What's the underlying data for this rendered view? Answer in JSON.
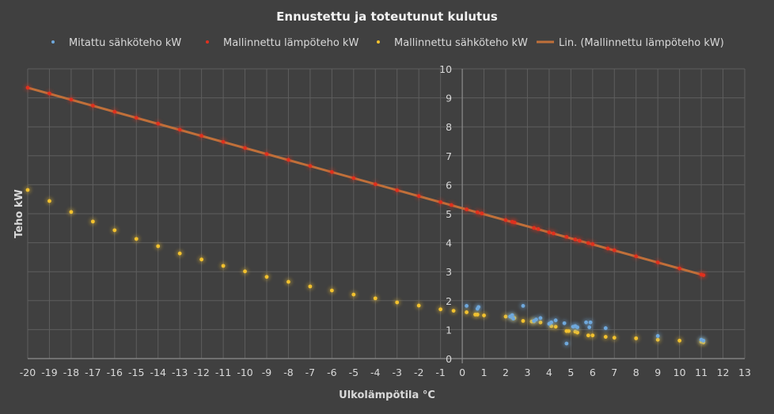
{
  "chart_data": {
    "type": "scatter",
    "title": "Ennustettu ja toteutunut kulutus",
    "xlabel": "Ulkolämpötila °C",
    "ylabel": "Teho kW",
    "xlim": [
      -20,
      13
    ],
    "ylim": [
      0,
      10
    ],
    "grid": true,
    "legend_position": "top",
    "x_ticks": [
      "-20",
      "-19",
      "-18",
      "-17",
      "-16",
      "-15",
      "-14",
      "-13",
      "-12",
      "-11",
      "-10",
      "-9",
      "-8",
      "-7",
      "-6",
      "-5",
      "-4",
      "-3",
      "-2",
      "-1",
      "0",
      "1",
      "2",
      "3",
      "4",
      "5",
      "6",
      "7",
      "8",
      "9",
      "10",
      "11",
      "12",
      "13"
    ],
    "y_ticks": [
      "0",
      "1",
      "2",
      "3",
      "4",
      "5",
      "6",
      "7",
      "8",
      "9",
      "10"
    ],
    "series": [
      {
        "name": "Mitattu sähköteho kW",
        "color": "#6fa8dc",
        "points": [
          [
            0.2,
            1.82
          ],
          [
            0.7,
            1.72
          ],
          [
            0.75,
            1.78
          ],
          [
            2.2,
            1.45
          ],
          [
            2.3,
            1.5
          ],
          [
            2.35,
            1.38
          ],
          [
            2.8,
            1.82
          ],
          [
            3.3,
            1.3
          ],
          [
            3.4,
            1.35
          ],
          [
            3.6,
            1.4
          ],
          [
            4.0,
            1.2
          ],
          [
            4.1,
            1.25
          ],
          [
            4.3,
            1.32
          ],
          [
            4.7,
            1.22
          ],
          [
            4.8,
            0.52
          ],
          [
            5.1,
            1.1
          ],
          [
            5.2,
            1.12
          ],
          [
            5.3,
            1.08
          ],
          [
            5.7,
            1.25
          ],
          [
            5.9,
            1.25
          ],
          [
            5.85,
            1.08
          ],
          [
            6.6,
            1.05
          ],
          [
            9.0,
            0.78
          ],
          [
            11.0,
            0.65
          ],
          [
            11.1,
            0.62
          ]
        ]
      },
      {
        "name": "Mallinnettu lämpöteho kW",
        "color": "#e0301e",
        "points": [
          [
            -20,
            9.35
          ],
          [
            -19,
            9.15
          ],
          [
            -18,
            8.94
          ],
          [
            -17,
            8.73
          ],
          [
            -16,
            8.52
          ],
          [
            -15,
            8.31
          ],
          [
            -14,
            8.11
          ],
          [
            -13,
            7.9
          ],
          [
            -12,
            7.69
          ],
          [
            -11,
            7.48
          ],
          [
            -10,
            7.27
          ],
          [
            -9,
            7.06
          ],
          [
            -8,
            6.86
          ],
          [
            -7,
            6.65
          ],
          [
            -6,
            6.44
          ],
          [
            -5,
            6.23
          ],
          [
            -4,
            6.02
          ],
          [
            -3,
            5.81
          ],
          [
            -2,
            5.61
          ],
          [
            -1,
            5.4
          ],
          [
            -0.5,
            5.3
          ],
          [
            0.2,
            5.15
          ],
          [
            0.7,
            5.05
          ],
          [
            0.9,
            5.01
          ],
          [
            2.0,
            4.78
          ],
          [
            2.3,
            4.72
          ],
          [
            2.4,
            4.7
          ],
          [
            3.3,
            4.51
          ],
          [
            3.5,
            4.47
          ],
          [
            4.0,
            4.36
          ],
          [
            4.2,
            4.32
          ],
          [
            4.8,
            4.2
          ],
          [
            5.2,
            4.11
          ],
          [
            5.4,
            4.07
          ],
          [
            5.8,
            3.99
          ],
          [
            6.0,
            3.95
          ],
          [
            6.7,
            3.8
          ],
          [
            7.0,
            3.74
          ],
          [
            8.0,
            3.53
          ],
          [
            9.0,
            3.32
          ],
          [
            10.0,
            3.11
          ],
          [
            11.0,
            2.9
          ],
          [
            11.1,
            2.88
          ]
        ]
      },
      {
        "name": "Mallinnettu sähköteho kW",
        "color": "#f2c12e",
        "points": [
          [
            -20,
            5.82
          ],
          [
            -19,
            5.44
          ],
          [
            -18,
            5.06
          ],
          [
            -17,
            4.73
          ],
          [
            -16,
            4.43
          ],
          [
            -15,
            4.13
          ],
          [
            -14,
            3.88
          ],
          [
            -13,
            3.63
          ],
          [
            -12,
            3.42
          ],
          [
            -11,
            3.2
          ],
          [
            -10,
            3.01
          ],
          [
            -9,
            2.82
          ],
          [
            -8,
            2.65
          ],
          [
            -7,
            2.49
          ],
          [
            -6,
            2.35
          ],
          [
            -5,
            2.21
          ],
          [
            -4,
            2.08
          ],
          [
            -3,
            1.94
          ],
          [
            -2,
            1.83
          ],
          [
            -1,
            1.7
          ],
          [
            -0.4,
            1.65
          ],
          [
            0.2,
            1.6
          ],
          [
            0.6,
            1.52
          ],
          [
            0.7,
            1.52
          ],
          [
            1.0,
            1.49
          ],
          [
            2.0,
            1.45
          ],
          [
            2.3,
            1.42
          ],
          [
            2.4,
            1.4
          ],
          [
            2.8,
            1.3
          ],
          [
            3.2,
            1.28
          ],
          [
            3.3,
            1.28
          ],
          [
            3.6,
            1.25
          ],
          [
            4.1,
            1.12
          ],
          [
            4.3,
            1.1
          ],
          [
            4.8,
            0.95
          ],
          [
            4.9,
            0.95
          ],
          [
            5.2,
            0.93
          ],
          [
            5.3,
            0.9
          ],
          [
            5.8,
            0.8
          ],
          [
            6.0,
            0.8
          ],
          [
            6.6,
            0.75
          ],
          [
            7.0,
            0.72
          ],
          [
            8.0,
            0.7
          ],
          [
            9.0,
            0.65
          ],
          [
            10.0,
            0.62
          ],
          [
            11.0,
            0.58
          ],
          [
            11.1,
            0.56
          ]
        ]
      }
    ],
    "trendline": {
      "name": "Lin. (Mallinnettu lämpöteho kW)",
      "color": "#c0703a",
      "type": "linear",
      "from": [
        -20,
        9.35
      ],
      "to": [
        11.1,
        2.88
      ]
    }
  }
}
